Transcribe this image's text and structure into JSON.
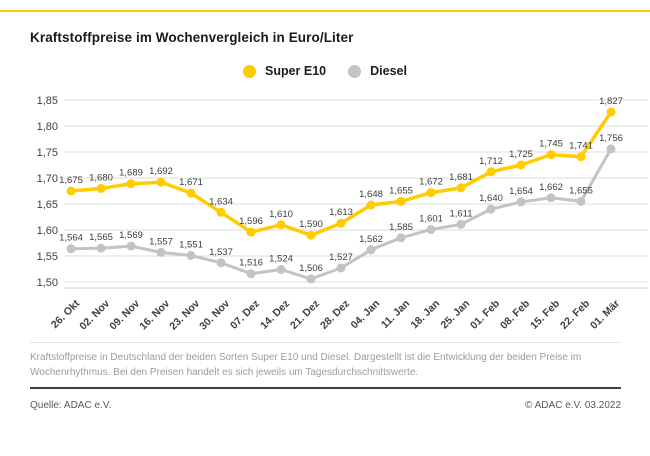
{
  "page": {
    "title": "Kraftstoffpreise im Wochenvergleich in Euro/Liter",
    "footnote": "Kraftstoffpreise in Deutschland der beiden Sorten Super E10 und Diesel. Dargestellt ist die Entwicklung der beiden Preise im Wochenrhythmus. Bei den Preisen handelt es sich jeweils um Tagesdurchschnittswerte.",
    "source_left": "Quelle: ADAC e.V.",
    "source_right": "© ADAC e.V. 03.2022"
  },
  "colors": {
    "accent_yellow": "#FFCC00",
    "diesel_gray": "#c3c3c3",
    "grid_line": "#dcdcdc",
    "axis_line": "#cfcfcf",
    "tick_text": "#3f3f3f",
    "data_label_text": "#3c3c3c",
    "footnote_text": "#9c9c9b",
    "source_text": "#575756"
  },
  "chart_data": {
    "type": "line",
    "title": "Kraftstoffpreise im Wochenvergleich in Euro/Liter",
    "unit": "Euro/Liter",
    "grid": true,
    "legend_position": "top-center",
    "ylim": [
      1.5,
      1.85
    ],
    "y_ticks": [
      "1,85",
      "1,80",
      "1,75",
      "1,70",
      "1,65",
      "1,60",
      "1,55",
      "1,50"
    ],
    "y_tick_values": [
      1.85,
      1.8,
      1.75,
      1.7,
      1.65,
      1.6,
      1.55,
      1.5
    ],
    "categories": [
      "26. Okt",
      "02. Nov",
      "09. Nov",
      "16. Nov",
      "23. Nov",
      "30. Nov",
      "07. Dez",
      "14. Dez",
      "21. Dez",
      "28. Dez",
      "04. Jan",
      "11. Jan",
      "18. Jan",
      "25. Jan",
      "01. Feb",
      "08. Feb",
      "15. Feb",
      "22. Feb",
      "01. Mär"
    ],
    "series": [
      {
        "name": "Diesel",
        "color": "#c3c3c3",
        "values": [
          1.564,
          1.565,
          1.569,
          1.557,
          1.551,
          1.537,
          1.516,
          1.524,
          1.506,
          1.527,
          1.562,
          1.585,
          1.601,
          1.611,
          1.64,
          1.654,
          1.662,
          1.655,
          1.756
        ],
        "labels": [
          "1,564",
          "1,565",
          "1,569",
          "1,557",
          "1,551",
          "1,537",
          "1,516",
          "1,524",
          "1,506",
          "1,527",
          "1,562",
          "1,585",
          "1,601",
          "1,611",
          "1,640",
          "1,654",
          "1,662",
          "1,655",
          "1,756"
        ]
      },
      {
        "name": "Super E10",
        "color": "#FFCC00",
        "values": [
          1.675,
          1.68,
          1.689,
          1.692,
          1.671,
          1.634,
          1.596,
          1.61,
          1.59,
          1.613,
          1.648,
          1.655,
          1.672,
          1.681,
          1.712,
          1.725,
          1.745,
          1.741,
          1.827
        ],
        "labels": [
          "1,675",
          "1,680",
          "1,689",
          "1,692",
          "1,671",
          "1,634",
          "1,596",
          "1,610",
          "1,590",
          "1,613",
          "1,648",
          "1,655",
          "1,672",
          "1,681",
          "1,712",
          "1,725",
          "1,745",
          "1,741",
          "1,827"
        ]
      }
    ]
  }
}
